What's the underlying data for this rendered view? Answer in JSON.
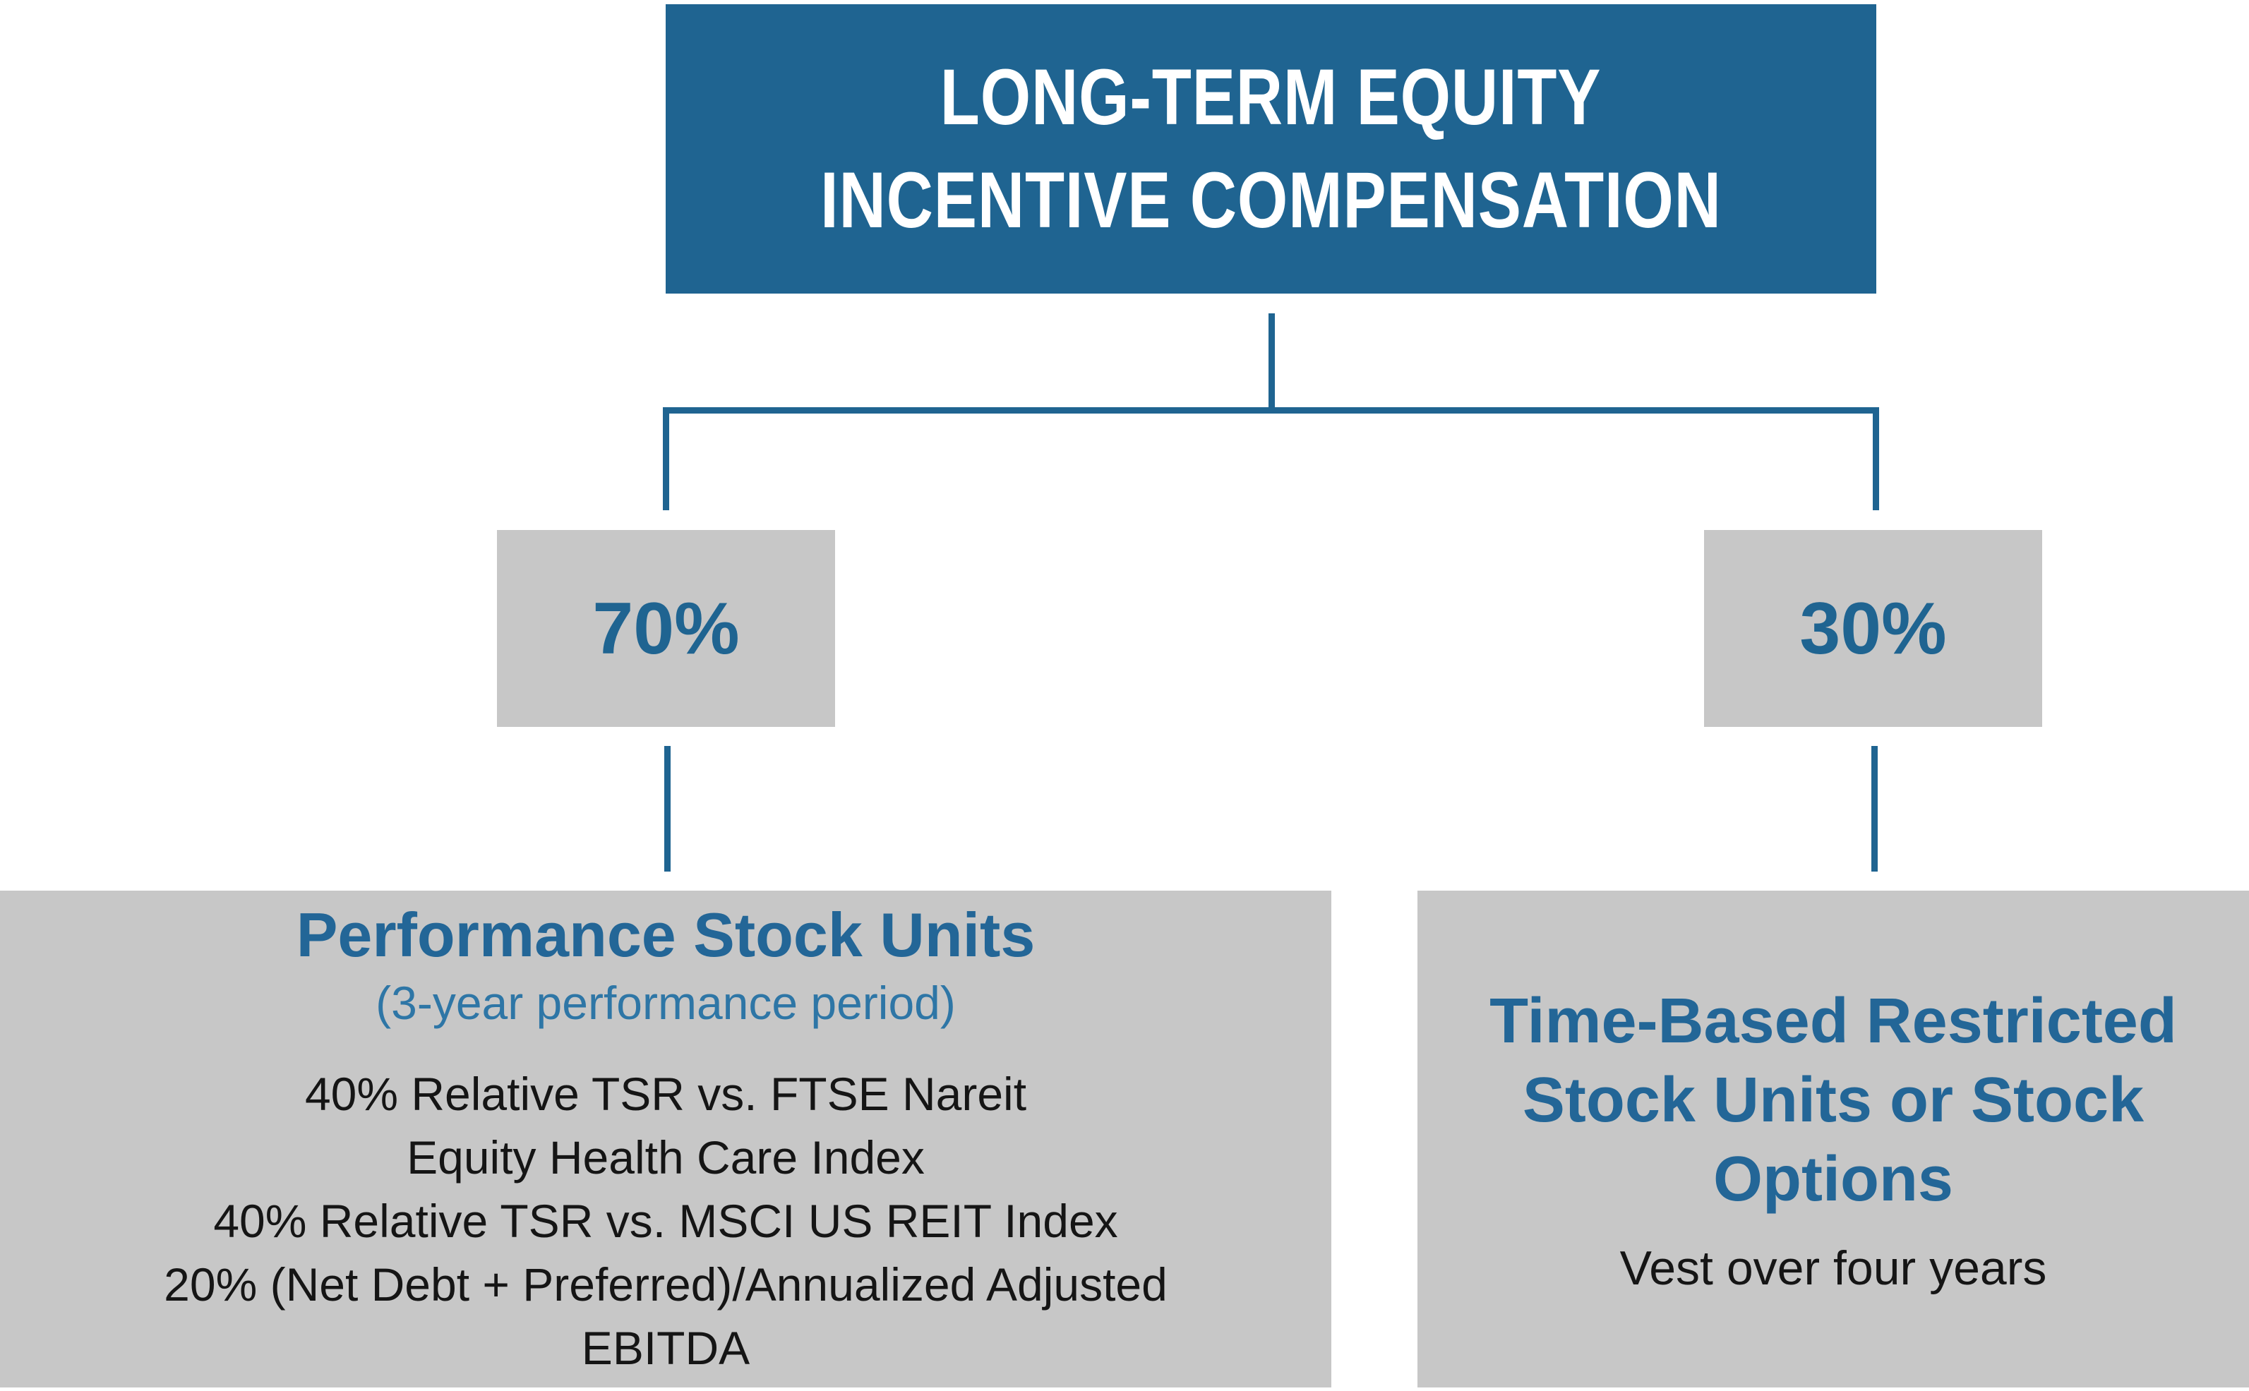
{
  "palette": {
    "blue": "#1F6491",
    "heading_blue": "#236697",
    "subtitle_blue": "#2E76A6",
    "box_gray": "#C7C7C7",
    "text_black": "#151515",
    "title_text": "#FFFFFF"
  },
  "title": {
    "line1": "LONG-TERM EQUITY",
    "line2": "INCENTIVE COMPENSATION"
  },
  "branches": {
    "left": {
      "percent": "70%"
    },
    "right": {
      "percent": "30%"
    }
  },
  "left_box": {
    "heading": "Performance Stock Units",
    "subheading": "(3-year performance period)",
    "lines": [
      "40% Relative TSR vs. FTSE Nareit",
      "Equity Health Care Index",
      "40% Relative TSR vs. MSCI US REIT Index",
      "20% (Net Debt + Preferred)/Annualized Adjusted",
      "EBITDA"
    ]
  },
  "right_box": {
    "heading_lines": [
      "Time-Based Restricted",
      "Stock Units or Stock",
      "Options"
    ],
    "detail": "Vest over four years"
  }
}
